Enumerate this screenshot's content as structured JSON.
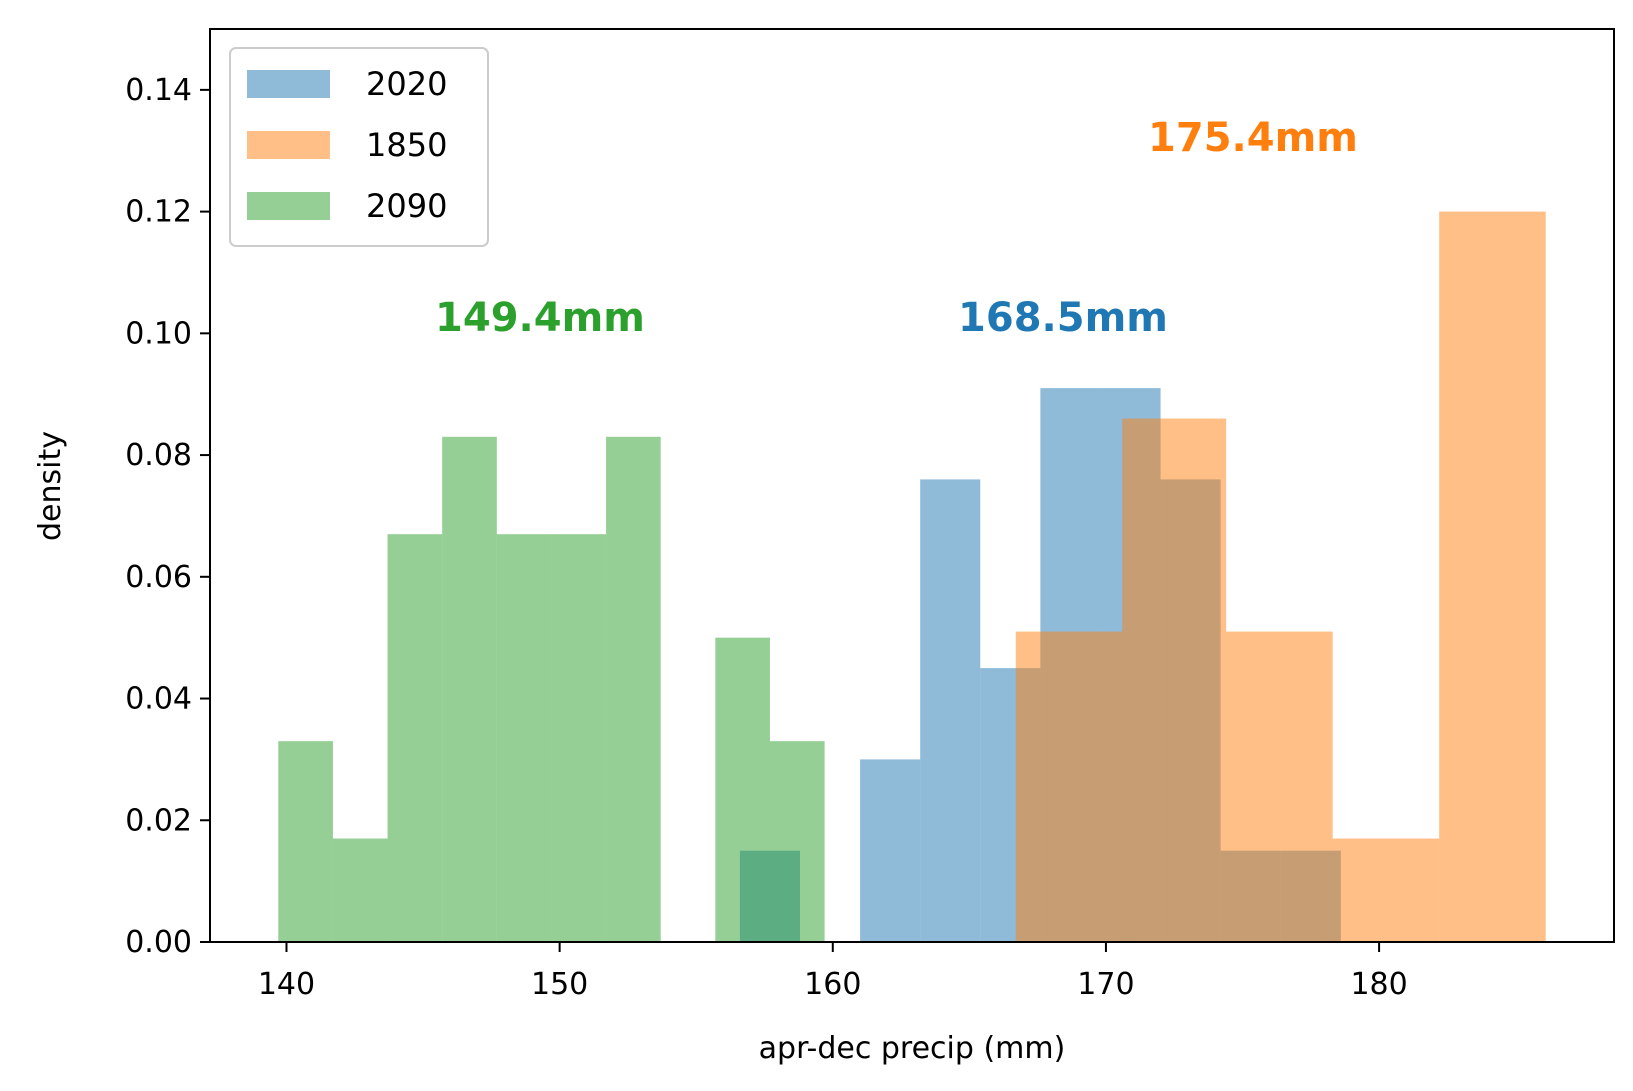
{
  "chart_data": {
    "type": "bar",
    "title": "",
    "xlabel": "apr-dec precip (mm)",
    "ylabel": "density",
    "xlim": [
      137.2,
      188.6
    ],
    "ylim": [
      0,
      0.15
    ],
    "x_ticks": [
      140,
      150,
      160,
      170,
      180
    ],
    "y_ticks": [
      0.0,
      0.02,
      0.04,
      0.06,
      0.08,
      0.1,
      0.12,
      0.14
    ],
    "y_tick_labels": [
      "0.00",
      "0.02",
      "0.04",
      "0.06",
      "0.08",
      "0.10",
      "0.12",
      "0.14"
    ],
    "grid": false,
    "legend_position": "top-left",
    "series": [
      {
        "name": "2020",
        "color": "#1f77b4",
        "alpha": 0.5,
        "bins": [
          {
            "x0": 156.6,
            "x1": 158.8,
            "density": 0.015
          },
          {
            "x0": 158.8,
            "x1": 161.0,
            "density": 0.0
          },
          {
            "x0": 161.0,
            "x1": 163.2,
            "density": 0.03
          },
          {
            "x0": 163.2,
            "x1": 165.4,
            "density": 0.076
          },
          {
            "x0": 165.4,
            "x1": 167.6,
            "density": 0.045
          },
          {
            "x0": 167.6,
            "x1": 169.8,
            "density": 0.091
          },
          {
            "x0": 169.8,
            "x1": 172.0,
            "density": 0.091
          },
          {
            "x0": 172.0,
            "x1": 174.2,
            "density": 0.076
          },
          {
            "x0": 174.2,
            "x1": 176.4,
            "density": 0.015
          },
          {
            "x0": 176.4,
            "x1": 178.6,
            "density": 0.015
          }
        ],
        "mean_label": "168.5mm"
      },
      {
        "name": "1850",
        "color": "#ff7f0e",
        "alpha": 0.5,
        "bins": [
          {
            "x0": 166.7,
            "x1": 170.6,
            "density": 0.051
          },
          {
            "x0": 170.6,
            "x1": 174.4,
            "density": 0.086
          },
          {
            "x0": 174.4,
            "x1": 178.3,
            "density": 0.051
          },
          {
            "x0": 178.3,
            "x1": 182.2,
            "density": 0.017
          },
          {
            "x0": 182.2,
            "x1": 186.1,
            "density": 0.12
          },
          {
            "x0": 186.1,
            "x1": 186.1,
            "density": 0.0
          }
        ],
        "mean_label": "175.4mm"
      },
      {
        "name": "2090",
        "color": "#2ca02c",
        "alpha": 0.5,
        "bins": [
          {
            "x0": 139.7,
            "x1": 141.7,
            "density": 0.033
          },
          {
            "x0": 141.7,
            "x1": 143.7,
            "density": 0.017
          },
          {
            "x0": 143.7,
            "x1": 145.7,
            "density": 0.067
          },
          {
            "x0": 145.7,
            "x1": 147.7,
            "density": 0.083
          },
          {
            "x0": 147.7,
            "x1": 149.7,
            "density": 0.067
          },
          {
            "x0": 149.7,
            "x1": 151.7,
            "density": 0.067
          },
          {
            "x0": 151.7,
            "x1": 153.7,
            "density": 0.083
          },
          {
            "x0": 153.7,
            "x1": 155.7,
            "density": 0.0
          },
          {
            "x0": 155.7,
            "x1": 157.7,
            "density": 0.05
          },
          {
            "x0": 157.7,
            "x1": 159.7,
            "density": 0.033
          }
        ],
        "mean_label": "149.4mm"
      }
    ]
  }
}
